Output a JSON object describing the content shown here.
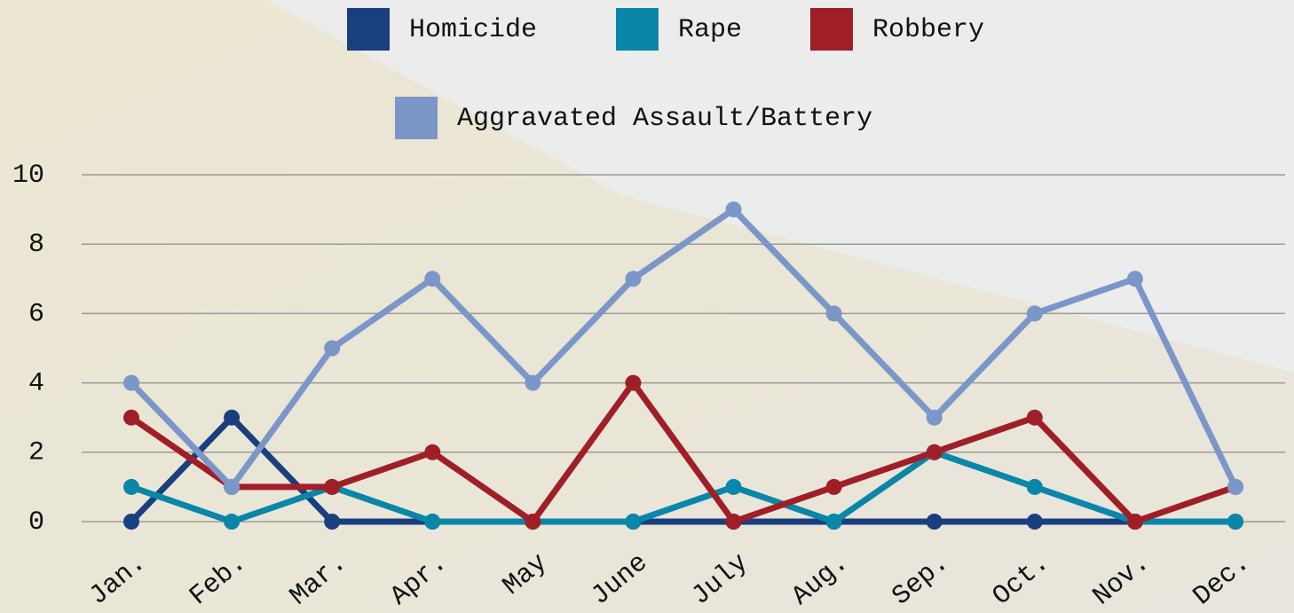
{
  "chart_data": {
    "type": "line",
    "categories": [
      "Jan.",
      "Feb.",
      "Mar.",
      "Apr.",
      "May",
      "June",
      "July",
      "Aug.",
      "Sep.",
      "Oct.",
      "Nov.",
      "Dec."
    ],
    "series": [
      {
        "name": "Homicide",
        "color": "#1a3f7e",
        "values": [
          0,
          3,
          0,
          0,
          0,
          0,
          0,
          0,
          0,
          0,
          0,
          0
        ]
      },
      {
        "name": "Rape",
        "color": "#0a86a8",
        "values": [
          1,
          0,
          1,
          0,
          0,
          0,
          1,
          0,
          2,
          1,
          0,
          0
        ]
      },
      {
        "name": "Robbery",
        "color": "#a01f27",
        "values": [
          3,
          1,
          1,
          2,
          0,
          4,
          0,
          1,
          2,
          3,
          0,
          1
        ]
      },
      {
        "name": "Aggravated Assault/Battery",
        "color": "#7b96c8",
        "values": [
          4,
          1,
          5,
          7,
          4,
          7,
          9,
          6,
          3,
          6,
          7,
          1
        ]
      }
    ],
    "ylim": [
      0,
      10
    ],
    "yticks": [
      0,
      2,
      4,
      6,
      8,
      10
    ],
    "grid": true,
    "legend": "top"
  }
}
